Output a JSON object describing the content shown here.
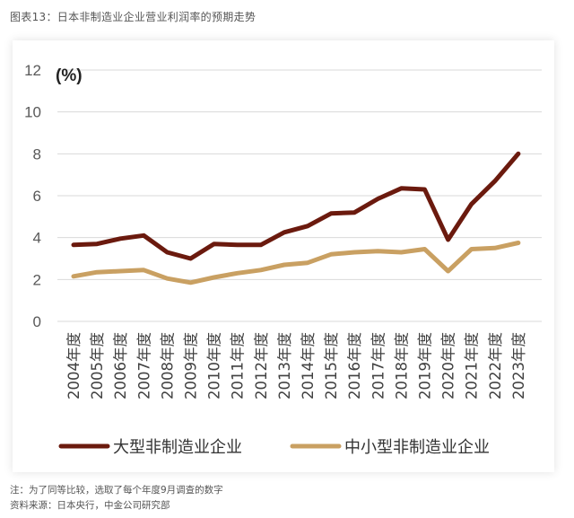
{
  "figure_title": "图表13：日本非制造业企业营业利润率的预期走势",
  "note": "注：为了同等比较，选取了每个年度9月调查的数字",
  "source": "资料来源：日本央行，中金公司研究部",
  "chart_data": {
    "type": "line",
    "unit_label": "(%)",
    "categories": [
      "2004年度",
      "2005年度",
      "2006年度",
      "2007年度",
      "2008年度",
      "2009年度",
      "2010年度",
      "2011年度",
      "2012年度",
      "2013年度",
      "2014年度",
      "2015年度",
      "2016年度",
      "2017年度",
      "2018年度",
      "2019年度",
      "2020年度",
      "2021年度",
      "2022年度",
      "2023年度"
    ],
    "y_ticks": [
      "0",
      "2",
      "4",
      "6",
      "8",
      "10",
      "12"
    ],
    "ylim": [
      0,
      12
    ],
    "grid": true,
    "legend_position": "bottom",
    "series": [
      {
        "name": "大型非制造业企业",
        "color": "#6B1A0E",
        "values": [
          3.65,
          3.7,
          3.95,
          4.1,
          3.3,
          3.0,
          3.7,
          3.65,
          3.65,
          4.25,
          4.55,
          5.15,
          5.2,
          5.85,
          6.35,
          6.3,
          3.9,
          5.6,
          6.7,
          8.0
        ]
      },
      {
        "name": "中小型非制造业企业",
        "color": "#C9A062",
        "values": [
          2.15,
          2.35,
          2.4,
          2.45,
          2.05,
          1.85,
          2.1,
          2.3,
          2.45,
          2.7,
          2.8,
          3.2,
          3.3,
          3.35,
          3.3,
          3.45,
          2.4,
          3.45,
          3.5,
          3.75
        ]
      }
    ]
  }
}
